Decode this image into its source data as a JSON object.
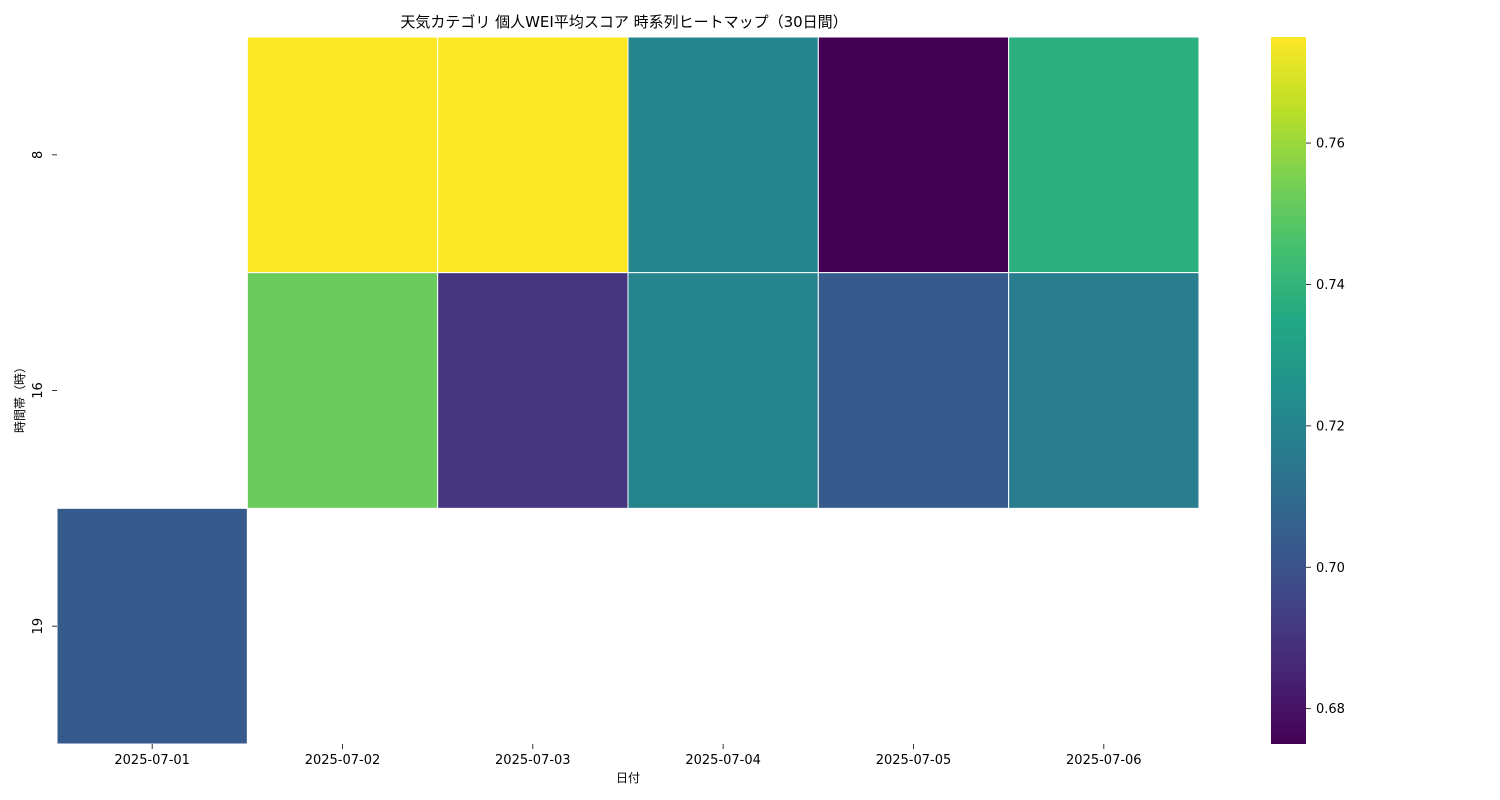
{
  "chart_data": {
    "type": "heatmap",
    "title": "天気カテゴリ 個人WEI平均スコア 時系列ヒートマップ（30日間）",
    "xlabel": "日付",
    "ylabel": "時間帯（時）",
    "x_categories": [
      "2025-07-01",
      "2025-07-02",
      "2025-07-03",
      "2025-07-04",
      "2025-07-05",
      "2025-07-06"
    ],
    "y_categories": [
      "8",
      "16",
      "19"
    ],
    "values": [
      [
        null,
        0.775,
        0.775,
        0.72,
        0.675,
        0.738
      ],
      [
        null,
        0.752,
        0.69,
        0.72,
        0.703,
        0.717
      ],
      [
        0.703,
        null,
        null,
        null,
        null,
        null
      ]
    ],
    "colormap": "viridis",
    "vmin": 0.675,
    "vmax": 0.775,
    "colorbar_ticks": [
      0.68,
      0.7,
      0.72,
      0.74,
      0.76
    ],
    "colorbar_tick_labels": [
      "0.68",
      "0.70",
      "0.72",
      "0.74",
      "0.76"
    ],
    "cell_border_color": "#ffffff",
    "missing_color": "#ffffff",
    "grid": false
  }
}
